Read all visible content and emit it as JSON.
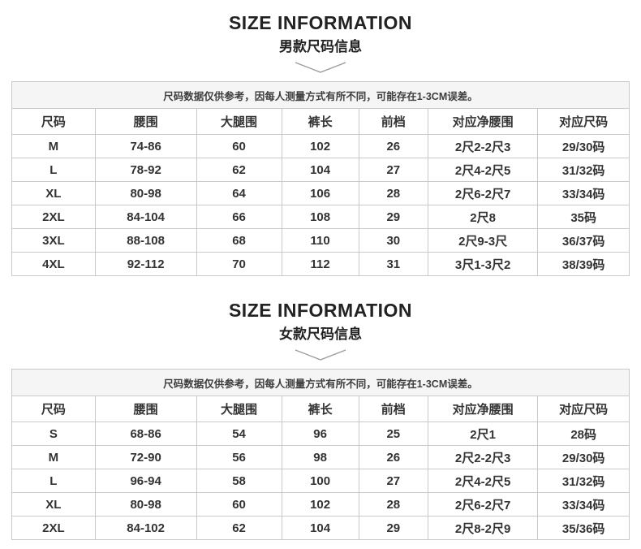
{
  "page": {
    "background": "#ffffff",
    "text_color": "#333333",
    "title_color": "#222222",
    "border_color": "#c9c9c9",
    "notice_background": "#f5f5f5"
  },
  "sections": [
    {
      "title": "SIZE INFORMATION",
      "subtitle": "男款尺码信息",
      "chevron_icon": "chevron-down",
      "notice": "尺码数据仅供参考，因每人测量方式有所不同，可能存在1-3CM误差。"
    },
    {
      "title": "SIZE INFORMATION",
      "subtitle": "女款尺码信息",
      "chevron_icon": "chevron-down",
      "notice": "尺码数据仅供参考，因每人测量方式有所不同，可能存在1-3CM误差。"
    }
  ],
  "chart_data": [
    {
      "type": "table",
      "title": "男款尺码信息",
      "columns": [
        "尺码",
        "腰围",
        "大腿围",
        "裤长",
        "前档",
        "对应净腰围",
        "对应尺码"
      ],
      "rows": [
        [
          "M",
          "74-86",
          "60",
          "102",
          "26",
          "2尺2-2尺3",
          "29/30码"
        ],
        [
          "L",
          "78-92",
          "62",
          "104",
          "27",
          "2尺4-2尺5",
          "31/32码"
        ],
        [
          "XL",
          "80-98",
          "64",
          "106",
          "28",
          "2尺6-2尺7",
          "33/34码"
        ],
        [
          "2XL",
          "84-104",
          "66",
          "108",
          "29",
          "2尺8",
          "35码"
        ],
        [
          "3XL",
          "88-108",
          "68",
          "110",
          "30",
          "2尺9-3尺",
          "36/37码"
        ],
        [
          "4XL",
          "92-112",
          "70",
          "112",
          "31",
          "3尺1-3尺2",
          "38/39码"
        ]
      ]
    },
    {
      "type": "table",
      "title": "女款尺码信息",
      "columns": [
        "尺码",
        "腰围",
        "大腿围",
        "裤长",
        "前档",
        "对应净腰围",
        "对应尺码"
      ],
      "rows": [
        [
          "S",
          "68-86",
          "54",
          "96",
          "25",
          "2尺1",
          "28码"
        ],
        [
          "M",
          "72-90",
          "56",
          "98",
          "26",
          "2尺2-2尺3",
          "29/30码"
        ],
        [
          "L",
          "96-94",
          "58",
          "100",
          "27",
          "2尺4-2尺5",
          "31/32码"
        ],
        [
          "XL",
          "80-98",
          "60",
          "102",
          "28",
          "2尺6-2尺7",
          "33/34码"
        ],
        [
          "2XL",
          "84-102",
          "62",
          "104",
          "29",
          "2尺8-2尺9",
          "35/36码"
        ]
      ]
    }
  ]
}
